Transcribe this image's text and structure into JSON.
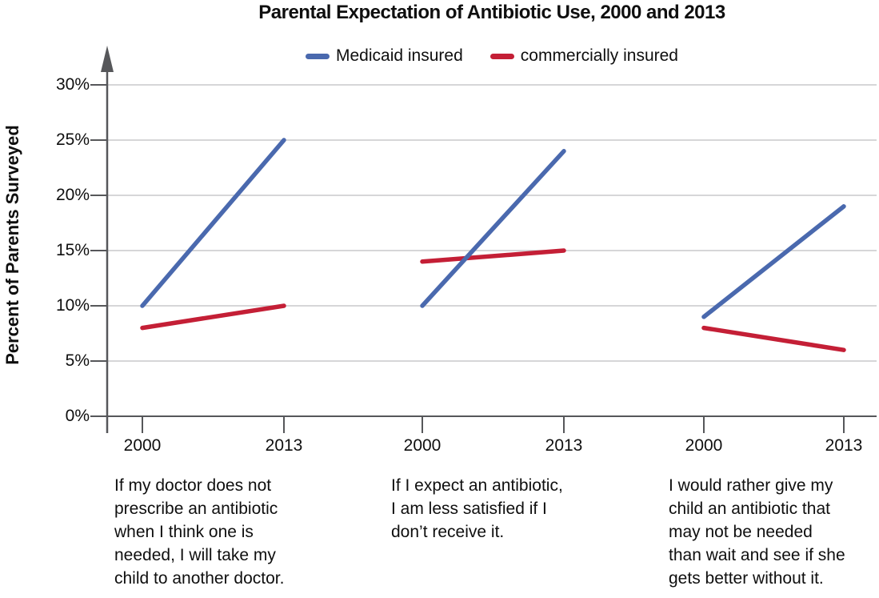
{
  "title": "Parental Expectation of Antibiotic Use, 2000 and 2013",
  "legend": {
    "items": [
      {
        "label": "Medicaid insured",
        "color": "#4a69ae"
      },
      {
        "label": "commercially insured",
        "color": "#c41f36"
      }
    ]
  },
  "y_axis": {
    "label": "Percent of Parents Surveyed",
    "ticks": [
      {
        "value": 30,
        "label": "30%"
      },
      {
        "value": 25,
        "label": "25%"
      },
      {
        "value": 20,
        "label": "20%"
      },
      {
        "value": 15,
        "label": "15%"
      },
      {
        "value": 10,
        "label": "10%"
      },
      {
        "value": 5,
        "label": "5%"
      },
      {
        "value": 0,
        "label": "0%"
      }
    ]
  },
  "colors": {
    "axis": "#56575a",
    "grid": "#c8c9cb",
    "text": "#0f0f0f",
    "medicaid": "#4a69ae",
    "commercial": "#c41f36"
  },
  "chart_data": {
    "type": "line",
    "title": "Parental Expectation of Antibiotic Use, 2000 and 2013",
    "ylabel": "Percent of Parents Surveyed",
    "ylim": [
      0,
      30
    ],
    "y_tick_step": 5,
    "grid": true,
    "legend_position": "top",
    "series_names": [
      "Medicaid insured",
      "commercially insured"
    ],
    "panels": [
      {
        "x": [
          "2000",
          "2013"
        ],
        "caption": "If my doctor does not\nprescribe an antibiotic\nwhen I think one is\nneeded, I will take my\nchild to another doctor.",
        "series": [
          {
            "name": "Medicaid insured",
            "values": [
              10,
              25
            ]
          },
          {
            "name": "commercially insured",
            "values": [
              8,
              10
            ]
          }
        ]
      },
      {
        "x": [
          "2000",
          "2013"
        ],
        "caption": "If I expect an antibiotic,\nI am less satisfied if I\ndon’t receive it.",
        "series": [
          {
            "name": "Medicaid insured",
            "values": [
              10,
              24
            ]
          },
          {
            "name": "commercially insured",
            "values": [
              14,
              15
            ]
          }
        ]
      },
      {
        "x": [
          "2000",
          "2013"
        ],
        "caption": "I would rather give my\nchild an antibiotic that\nmay not be needed\nthan wait and see if she\ngets better without it.",
        "series": [
          {
            "name": "Medicaid insured",
            "values": [
              9,
              19
            ]
          },
          {
            "name": "commercially insured",
            "values": [
              8,
              6
            ]
          }
        ]
      }
    ]
  }
}
